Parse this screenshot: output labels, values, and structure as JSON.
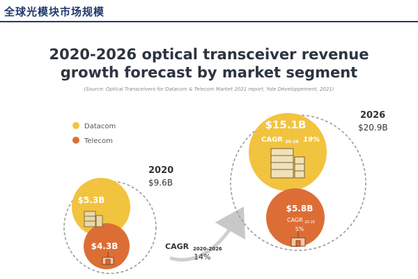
{
  "header": {
    "title": "全球光模块市场规模"
  },
  "chart_data": {
    "type": "bubble",
    "title": "2020-2026 optical transceiver revenue",
    "title_line2": "growth forecast by market segment",
    "source": "(Source: Optical Transceivers for Datacom & Telecom Market 2021 report, Yole Développement, 2021)",
    "legend": [
      {
        "name": "Datacom",
        "color": "#f2c33f"
      },
      {
        "name": "Telecom",
        "color": "#dc6e35"
      }
    ],
    "years": [
      {
        "year": "2020",
        "total": "$9.6B",
        "segments": [
          {
            "name": "Datacom",
            "value_label": "$5.3B",
            "value": 5.3
          },
          {
            "name": "Telecom",
            "value_label": "$4.3B",
            "value": 4.3
          }
        ]
      },
      {
        "year": "2026",
        "total": "$20.9B",
        "segments": [
          {
            "name": "Datacom",
            "value_label": "$15.1B",
            "value": 15.1,
            "cagr_label": "CAGR",
            "cagr_sub": "20-26",
            "cagr": "19%"
          },
          {
            "name": "Telecom",
            "value_label": "$5.8B",
            "value": 5.8,
            "cagr_label": "CAGR",
            "cagr_sub": "20-26",
            "cagr": "5%"
          }
        ]
      }
    ],
    "overall_cagr": {
      "label": "CAGR",
      "sub": "2020-2026",
      "value": "14%"
    }
  }
}
